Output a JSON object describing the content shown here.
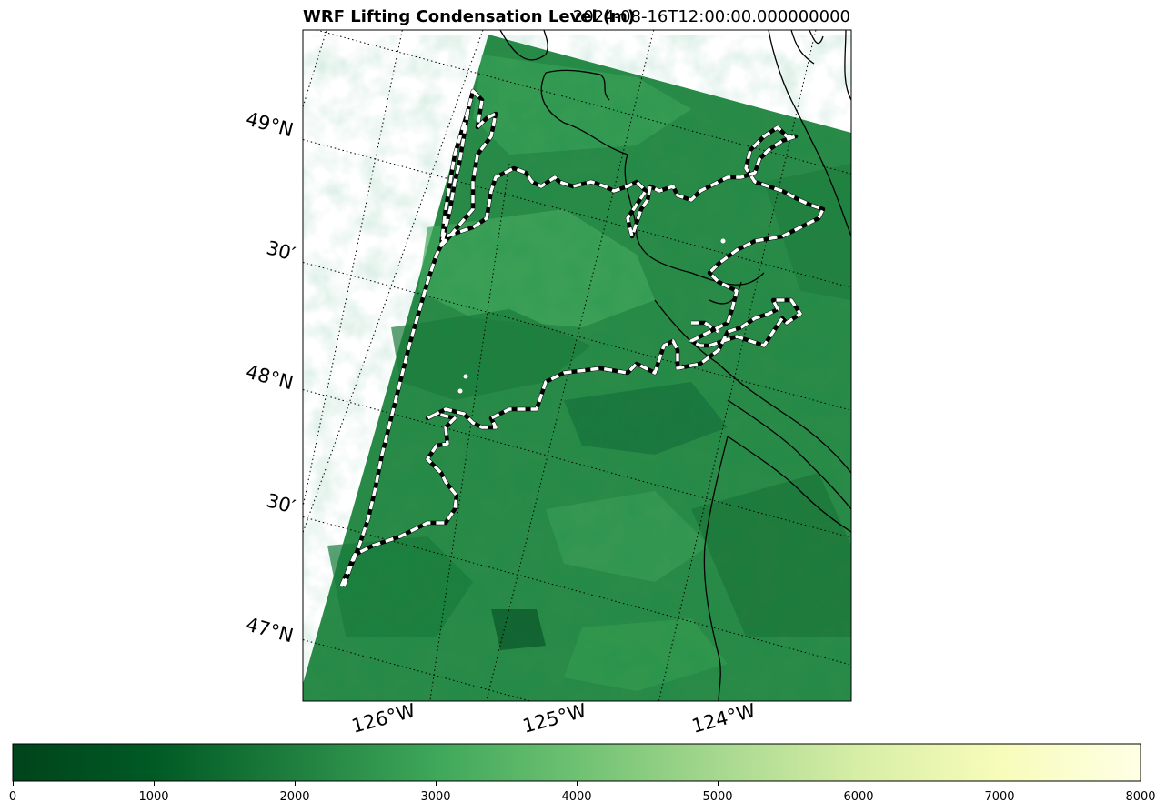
{
  "title_left": "WRF Lifting Condensation Level (m)",
  "title_right": "2024-08-16T12:00:00.000000000",
  "lat_labels": [
    "49°N",
    "30′",
    "48°N",
    "30′",
    "47°N"
  ],
  "lon_labels": [
    "126°W",
    "125°W",
    "124°W"
  ],
  "colorbar": {
    "colormap": "Greens_r",
    "min": 0,
    "max": 8000,
    "ticks": [
      "0",
      "1000",
      "2000",
      "3000",
      "4000",
      "5000",
      "6000",
      "7000",
      "8000"
    ],
    "colors": [
      "#00441b",
      "#006d2c",
      "#238b45",
      "#41ab5d",
      "#74c476",
      "#a1d99b",
      "#c7e9c0",
      "#f7fcb9",
      "#ffffe5"
    ]
  },
  "map": {
    "field_color": "#2a8a47",
    "coastline_color": "#000000",
    "contour_style": "white dashed over black",
    "gridline_style": "dotted"
  }
}
